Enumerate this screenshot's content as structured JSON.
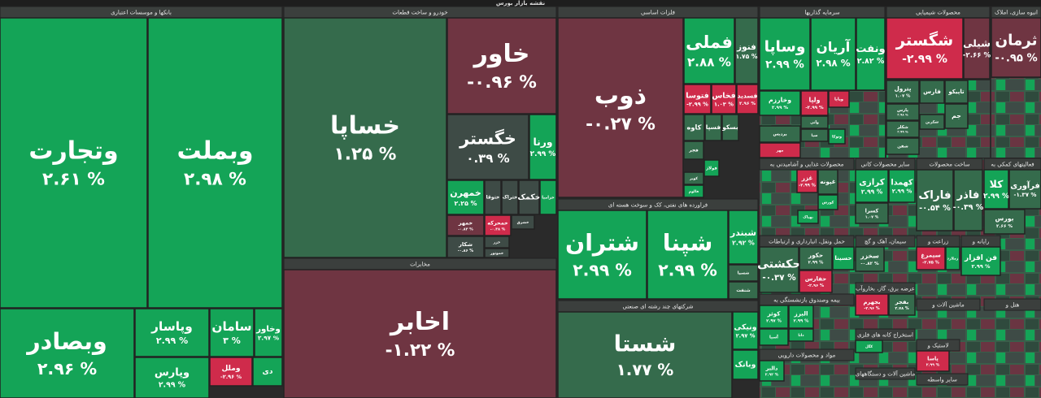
{
  "title": "نقشه بازار بورس",
  "sectors": [
    {
      "title": "بانکها و موسسات اعتباری",
      "tiles": [
        {
          "name": "وتجارت",
          "change": "۲.۶۱ %",
          "color": "#14a457"
        },
        {
          "name": "وبملت",
          "change": "۲.۹۸ %",
          "color": "#14a457"
        },
        {
          "name": "وبصادر",
          "change": "۲.۹۶ %",
          "color": "#14a457"
        },
        {
          "name": "وپاسار",
          "change": "۲.۹۹ %",
          "color": "#14a457"
        },
        {
          "name": "سامان",
          "change": "۳ %",
          "color": "#14a457"
        },
        {
          "name": "وخاور",
          "change": "۲.۹۷ %",
          "color": "#14a457"
        },
        {
          "name": "وپارس",
          "change": "۲.۹۹ %",
          "color": "#14a457"
        },
        {
          "name": "وملل",
          "change": "-۲.۹۶ %",
          "color": "#cf2b4b"
        },
        {
          "name": "دی",
          "color": "#14a457"
        }
      ]
    },
    {
      "title": "خودرو و ساخت قطعات",
      "tiles": [
        {
          "name": "خساپا",
          "change": "۱.۲۵ %",
          "color": "#356b4c"
        },
        {
          "name": "خاور",
          "change": "-۰.۹۶ %",
          "color": "#6f3542"
        },
        {
          "name": "خگستر",
          "change": "۰.۳۹ %",
          "color": "#3e4b46"
        },
        {
          "name": "ورنا",
          "change": "۲.۹۹ %",
          "color": "#14a457"
        },
        {
          "name": "خمهرن",
          "change": "۲.۲۵ %",
          "color": "#14a457"
        },
        {
          "name": "ختوقا",
          "color": "#3e4b46"
        },
        {
          "name": "ختراک",
          "color": "#3e4b46"
        },
        {
          "name": "خکمک",
          "color": "#3e4b46"
        },
        {
          "name": "خزامیا",
          "color": "#14a457"
        },
        {
          "name": "خمهر",
          "change": "-۰.۸۳ %",
          "color": "#6f3542"
        },
        {
          "name": "شکار",
          "change": "-۰.۸۶ %",
          "color": "#3e4b46"
        },
        {
          "name": "خمحرکه",
          "change": "-۰.۳۸ %",
          "color": "#cf2b4b"
        },
        {
          "name": "خشرق",
          "color": "#3e4b46"
        },
        {
          "name": "خزر",
          "color": "#3e4b46"
        },
        {
          "name": "خموتور",
          "color": "#3e4b46"
        }
      ]
    },
    {
      "title": "مخابرات",
      "tiles": [
        {
          "name": "اخابر",
          "change": "-۱.۲۲ %",
          "color": "#6f3542"
        }
      ]
    },
    {
      "title": "فلزات اساسی",
      "tiles": [
        {
          "name": "ذوب",
          "change": "-۰.۲۷ %",
          "color": "#6f3542"
        },
        {
          "name": "فملی",
          "change": "۲.۸۸ %",
          "color": "#14a457"
        },
        {
          "name": "فنوز",
          "change": "۱.۷۵ %",
          "color": "#356b4c"
        },
        {
          "name": "فتوسا",
          "change": "-۲.۹۹ %",
          "color": "#cf2b4b"
        },
        {
          "name": "فخاس",
          "change": "۱.۰۳ %",
          "color": "#cf2b4b"
        },
        {
          "name": "فسدید",
          "change": "۲.۹۶ %",
          "color": "#cf2b4b"
        },
        {
          "name": "کاوه",
          "color": "#356b4c"
        },
        {
          "name": "فسپا",
          "color": "#356b4c"
        },
        {
          "name": "بسکو",
          "color": "#356b4c"
        },
        {
          "name": "فجر",
          "color": "#356b4c"
        },
        {
          "name": "فولاژ",
          "color": "#14a457"
        },
        {
          "name": "کویر",
          "color": "#356b4c"
        },
        {
          "name": "فالوم",
          "color": "#14a457"
        }
      ]
    },
    {
      "title": "فراورده های نفتی، کک و سوخت هسته ای",
      "tiles": [
        {
          "name": "شتران",
          "change": "۲.۹۹ %",
          "color": "#14a457"
        },
        {
          "name": "شپنا",
          "change": "۲.۹۹ %",
          "color": "#14a457"
        },
        {
          "name": "شبندر",
          "change": "۲.۹۲ %",
          "color": "#14a457"
        },
        {
          "name": "شسپا",
          "color": "#356b4c"
        },
        {
          "name": "شنفت",
          "color": "#356b4c"
        }
      ]
    },
    {
      "title": "شرکتهای چند رشته ای صنعتی",
      "tiles": [
        {
          "name": "شستا",
          "change": "۱.۷۷ %",
          "color": "#356b4c"
        },
        {
          "name": "ونیکی",
          "change": "۲.۹۷ %",
          "color": "#14a457"
        },
        {
          "name": "وبانک",
          "color": "#14a457"
        }
      ]
    },
    {
      "title": "سرمایه گذاریها",
      "tiles": [
        {
          "name": "وساپا",
          "change": "۲.۹۹ %",
          "color": "#14a457"
        },
        {
          "name": "آریان",
          "change": "۲.۹۸ %",
          "color": "#14a457"
        },
        {
          "name": "ونفت",
          "change": "۲.۸۲ %",
          "color": "#14a457"
        },
        {
          "name": "وخارزم",
          "change": "۲.۹۹ %",
          "color": "#14a457"
        },
        {
          "name": "ولپا",
          "change": "-۲.۹۹ %",
          "color": "#cf2b4b"
        },
        {
          "name": "وپایا",
          "color": "#cf2b4b"
        },
        {
          "name": "پردیس",
          "color": "#356b4c"
        },
        {
          "name": "وآتی",
          "color": "#356b4c"
        },
        {
          "name": "سپا",
          "color": "#356b4c"
        },
        {
          "name": "وتوکا",
          "color": "#14a457"
        },
        {
          "name": "مهر",
          "color": "#cf2b4b"
        }
      ]
    },
    {
      "title": "محصولات شیمیایی",
      "tiles": [
        {
          "name": "شگستر",
          "change": "-۲.۹۹ %",
          "color": "#cf2b4b"
        },
        {
          "name": "شیلی",
          "change": "-۲.۶۶ %",
          "color": "#6f3542"
        },
        {
          "name": "پترول",
          "change": "۱.۰۷ %",
          "color": "#356b4c"
        },
        {
          "name": "فارس",
          "color": "#356b4c"
        },
        {
          "name": "تاپیکو",
          "color": "#356b4c"
        },
        {
          "name": "جم",
          "color": "#356b4c"
        },
        {
          "name": "پارس",
          "change": "۲.۹۸ %",
          "color": "#356b4c"
        },
        {
          "name": "شکلر",
          "change": "۲.۹۹ %",
          "color": "#356b4c"
        },
        {
          "name": "شکربن",
          "color": "#356b4c"
        },
        {
          "name": "شفن",
          "color": "#356b4c"
        }
      ]
    },
    {
      "title": "انبوه سازی، املاک",
      "tiles": [
        {
          "name": "ثرمان",
          "change": "-۰.۹۵ %",
          "color": "#6f3542"
        }
      ]
    },
    {
      "title": "محصولات غذایی و آشامیدنی به",
      "tiles": [
        {
          "name": "غزر",
          "change": "-۲.۹۹ %",
          "color": "#cf2b4b"
        },
        {
          "name": "غپونه",
          "color": "#356b4c"
        },
        {
          "name": "کورش",
          "color": "#14a457"
        },
        {
          "name": "بهپاک",
          "color": "#14a457"
        }
      ]
    },
    {
      "title": "سایر محصولات کانی",
      "tiles": [
        {
          "name": "کرازی",
          "change": "۲.۹۹ %",
          "color": "#14a457"
        },
        {
          "name": "کهمدا",
          "change": "۲.۹۹ %",
          "color": "#14a457"
        },
        {
          "name": "کسرا",
          "change": "۱.۰۷ %",
          "color": "#356b4c"
        }
      ]
    },
    {
      "title": "ساخت محصولات",
      "tiles": [
        {
          "name": "فاراک",
          "change": "-۰.۵۴ %",
          "color": "#356b4c"
        },
        {
          "name": "فاذر",
          "change": "-۰.۳۹ %",
          "color": "#356b4c"
        }
      ]
    },
    {
      "title": "فعالیتهای کمکی به",
      "tiles": [
        {
          "name": "کلا",
          "change": "۲.۹۹ %",
          "color": "#14a457"
        },
        {
          "name": "فرآوری",
          "change": "-۱.۳۷ %",
          "color": "#356b4c"
        },
        {
          "name": "بورس",
          "change": "۲.۶۶ %",
          "color": "#356b4c"
        }
      ]
    },
    {
      "title": "حمل ونقل، انبارداری و ارتباطات",
      "tiles": [
        {
          "name": "حکشتی",
          "change": "-۰.۳۷ %",
          "color": "#356b4c"
        },
        {
          "name": "حکور",
          "change": "۲.۹۹ %",
          "color": "#356b4c"
        },
        {
          "name": "حسینا",
          "color": "#14a457"
        },
        {
          "name": "حفارس",
          "change": "-۲.۹۶ %",
          "color": "#cf2b4b"
        }
      ]
    },
    {
      "title": "سیمان، آهک و گچ",
      "tiles": [
        {
          "name": "سخزر",
          "change": "-۰.۸۲ %",
          "color": "#356b4c"
        }
      ]
    },
    {
      "title": "زراعت و",
      "tiles": [
        {
          "name": "سیمرغ",
          "change": "-۲.۷۵ %",
          "color": "#cf2b4b"
        },
        {
          "name": "زملارد",
          "color": "#14a457"
        }
      ]
    },
    {
      "title": "رایانه و",
      "tiles": [
        {
          "name": "فن افزار",
          "change": "۲.۹۹ %",
          "color": "#14a457"
        }
      ]
    },
    {
      "title": "عرضه برق، گاز، بخاروآب",
      "tiles": [
        {
          "name": "بجهرم",
          "change": "-۲.۹۶ %",
          "color": "#cf2b4b"
        },
        {
          "name": "بفجر",
          "change": "۲.۷۸ %",
          "color": "#356b4c"
        }
      ]
    },
    {
      "title": "بیمه وصندوق بازنشستگی به",
      "tiles": [
        {
          "name": "کوثر",
          "change": "۲.۹۷ %",
          "color": "#14a457"
        },
        {
          "name": "البرز",
          "change": "۲.۹۹ %",
          "color": "#14a457"
        },
        {
          "name": "آسیا",
          "color": "#14a457"
        },
        {
          "name": "دانا",
          "color": "#14a457"
        }
      ]
    },
    {
      "title": "ماشین آلات و",
      "tiles": []
    },
    {
      "title": "هتل و",
      "tiles": []
    },
    {
      "title": "استخراج کانه های فلزی",
      "tiles": [
        {
          "name": "کگل",
          "color": "#14a457"
        }
      ]
    },
    {
      "title": "مواد و محصولات دارویی",
      "tiles": [
        {
          "name": "دالبر",
          "change": "۲.۹۲ %",
          "color": "#14a457"
        }
      ]
    },
    {
      "title": "لاستیک و",
      "tiles": [
        {
          "name": "پاسا",
          "change": "۲.۹۹ %",
          "color": "#cf2b4b"
        }
      ]
    },
    {
      "title": "ماشین آلات و دستگاههای",
      "tiles": []
    },
    {
      "title": "سایر واسطه",
      "tiles": []
    }
  ]
}
